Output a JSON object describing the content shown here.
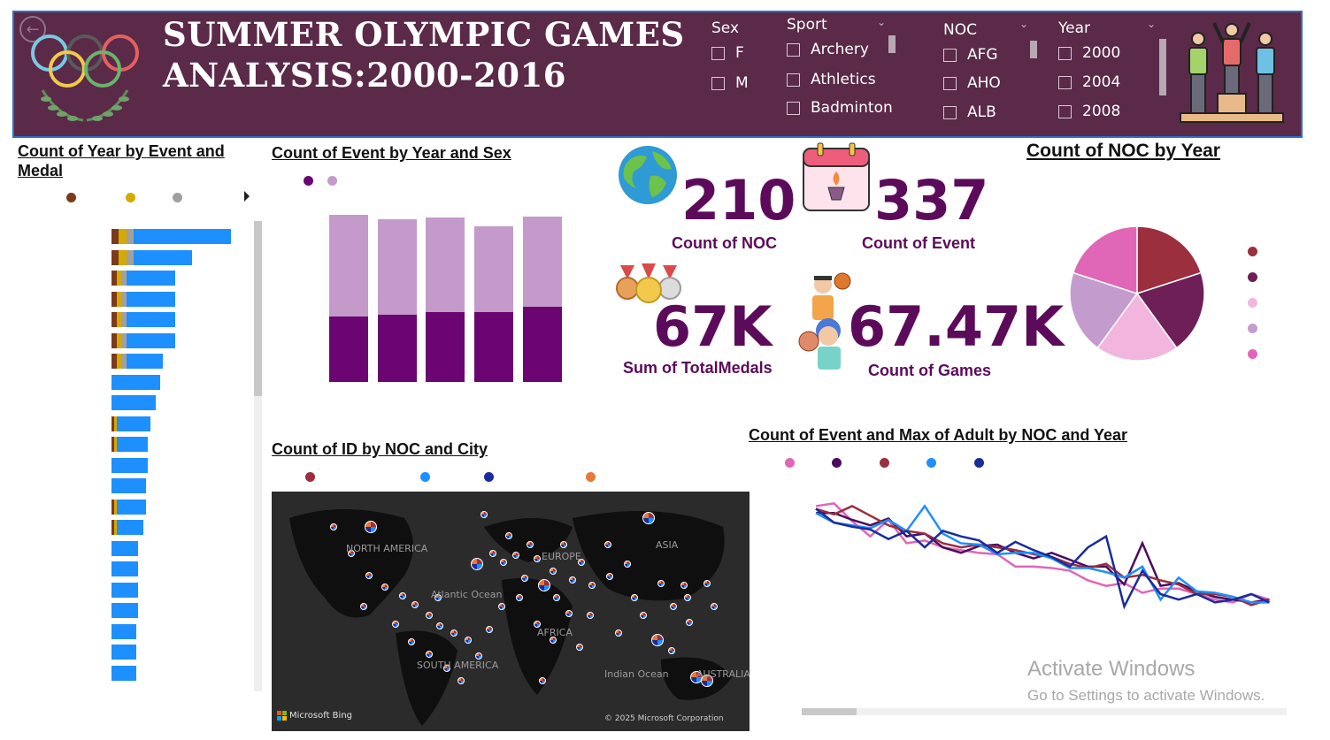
{
  "header": {
    "title_line1": "SUMMER OLYMPIC GAMES",
    "title_line2": "ANALYSIS:2000-2016"
  },
  "slicers": {
    "sex": {
      "label": "Sex",
      "items": [
        "F",
        "M"
      ]
    },
    "sport": {
      "label": "Sport",
      "items": [
        "Archery",
        "Athletics",
        "Badminton"
      ]
    },
    "noc": {
      "label": "NOC",
      "items": [
        "AFG",
        "AHO",
        "ALB"
      ]
    },
    "year": {
      "label": "Year",
      "items": [
        "2000",
        "2004",
        "2008"
      ]
    }
  },
  "kpis": {
    "noc": {
      "value": "210",
      "label": "Count of NOC"
    },
    "event": {
      "value": "337",
      "label": "Count of Event"
    },
    "medals": {
      "value": "67K",
      "label": "Sum of TotalMedals"
    },
    "games": {
      "value": "67.47K",
      "label": "Count of Games"
    }
  },
  "colors": {
    "header_bg": "#5a2a48",
    "kpi_text": "#5c0b5a",
    "bronze": "#7b3a1c",
    "gold": "#d4a900",
    "silver": "#a0a0a0",
    "bar_blue": "#1e8fff"
  },
  "chart_data": [
    {
      "type": "bar",
      "title": "Count of Year by Event and Medal",
      "orientation": "horizontal",
      "series": [
        {
          "values": [
            3,
            3,
            2,
            2,
            2,
            2,
            2,
            0,
            0,
            1,
            1,
            0,
            0,
            1,
            1,
            0,
            0,
            0,
            0,
            0,
            0,
            0
          ]
        },
        {
          "values": [
            3,
            3,
            2,
            2,
            2,
            2,
            2,
            0,
            0,
            1,
            1,
            0,
            0,
            1,
            1,
            0,
            0,
            0,
            0,
            0,
            0,
            0
          ]
        },
        {
          "values": [
            3,
            3,
            2,
            2,
            2,
            2,
            2,
            0,
            0,
            0,
            0,
            0,
            0,
            0,
            0,
            0,
            0,
            0,
            0,
            0,
            0,
            0
          ]
        },
        {
          "values": [
            40,
            24,
            20,
            20,
            20,
            20,
            15,
            20,
            18,
            14,
            13,
            15,
            14,
            12,
            11,
            11,
            11,
            11,
            11,
            10,
            10,
            10
          ]
        }
      ]
    },
    {
      "type": "bar",
      "stacked": true,
      "title": "Count of Event by Year and Sex",
      "series": [
        {
          "values": [
            78,
            80,
            83,
            83,
            89
          ]
        },
        {
          "values": [
            120,
            113,
            112,
            102,
            107
          ]
        }
      ],
      "ylim": [
        0,
        210
      ]
    },
    {
      "type": "pie",
      "title": "Count of NOC by Year",
      "values": [
        20,
        20,
        20,
        20,
        20
      ]
    },
    {
      "type": "line",
      "title": "Count of Event and Max of Adult by NOC and Year",
      "series": [
        {
          "values": [
            82,
            84,
            71,
            60,
            72,
            55,
            57,
            52,
            50,
            48,
            47,
            38,
            38,
            37,
            35,
            28,
            24,
            26,
            19,
            22,
            22,
            18,
            14,
            12,
            18,
            14
          ]
        },
        {
          "values": [
            77,
            77,
            72,
            68,
            73,
            60,
            62,
            52,
            48,
            53,
            54,
            48,
            44,
            48,
            43,
            38,
            38,
            25,
            55,
            24,
            26,
            20,
            16,
            14,
            12,
            14
          ]
        },
        {
          "values": [
            80,
            76,
            82,
            75,
            68,
            64,
            62,
            55,
            52,
            54,
            52,
            50,
            47,
            45,
            40,
            37,
            40,
            30,
            32,
            28,
            25,
            18,
            18,
            16,
            10,
            14
          ]
        },
        {
          "values": [
            77,
            70,
            68,
            66,
            72,
            64,
            82,
            62,
            55,
            54,
            47,
            48,
            48,
            44,
            37,
            37,
            34,
            30,
            38,
            14,
            30,
            20,
            19,
            16,
            12,
            12
          ]
        },
        {
          "values": [
            80,
            70,
            67,
            65,
            58,
            64,
            52,
            64,
            60,
            57,
            48,
            56,
            50,
            45,
            38,
            52,
            60,
            9,
            35,
            18,
            14,
            18,
            12,
            14,
            18,
            12
          ]
        }
      ]
    }
  ],
  "map": {
    "title": "Count of ID by NOC and City",
    "labels": [
      "NORTH AMERICA",
      "Atlantic Ocean",
      "SOUTH AMERICA",
      "AFRICA",
      "ASIA",
      "Indian Ocean",
      "AUSTRALIA",
      "EUROPE"
    ],
    "brand": "Microsoft Bing",
    "copyright": "© 2025 Microsoft Corporation"
  },
  "legends": {
    "medal": [
      "#7b3a1c",
      "#d4a900",
      "#a0a0a0"
    ],
    "sex": [
      "#6a0572",
      "#c49acb"
    ],
    "pie": [
      "#9b2f3e",
      "#6e1f57",
      "#f2b6de",
      "#c39ccd",
      "#e066b8"
    ],
    "map": [
      "#9b2f3e",
      "#1e8fff",
      "#1a2c9c",
      "#e8773a"
    ],
    "line": [
      "#e066b8",
      "#4a0d5e",
      "#9b2f3e",
      "#1e8fff",
      "#1a2c9c"
    ]
  },
  "watermark": {
    "line1": "Activate Windows",
    "line2": "Go to Settings to activate Windows."
  }
}
